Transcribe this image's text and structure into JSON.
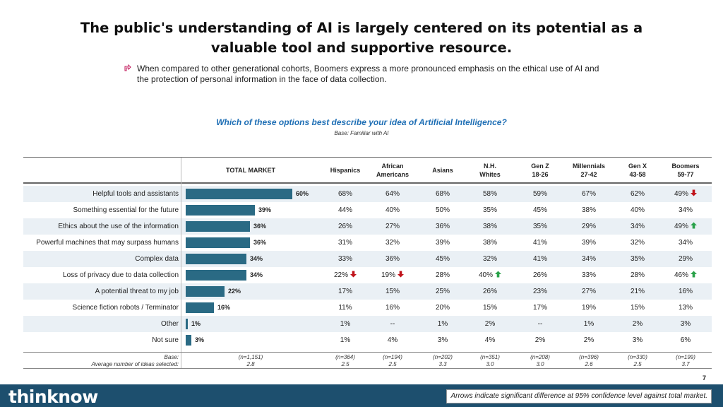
{
  "title_line1": "The public's understanding of AI is largely centered on its potential as a",
  "title_line2": "valuable tool and supportive resource.",
  "bullet_text": "When compared to other generational cohorts, Boomers express a more pronounced emphasis on the ethical use of AI and the protection of personal information in the face of data collection.",
  "question": "Which of these options best describe your idea of Artificial Intelligence?",
  "question_base": "Base: Familiar with AI",
  "colors": {
    "bar": "#2a6a84",
    "arrow_up": "#2aa24a",
    "arrow_down": "#c0141b",
    "footer": "#1d4f6e",
    "question": "#1f6fb5"
  },
  "columns": {
    "total": "TOTAL MARKET",
    "hispanics": "Hispanics",
    "african_l1": "African",
    "african_l2": "Americans",
    "asians": "Asians",
    "nh_l1": "N.H.",
    "nh_l2": "Whites",
    "genz_l1": "Gen Z",
    "genz_l2": "18-26",
    "mill_l1": "Millennials",
    "mill_l2": "27-42",
    "genx_l1": "Gen X",
    "genx_l2": "43-58",
    "boom_l1": "Boomers",
    "boom_l2": "59-77"
  },
  "chart_data": {
    "type": "bar",
    "orientation": "horizontal",
    "title": "Which of these options best describe your idea of Artificial Intelligence?",
    "categories": [
      "Helpful tools and assistants",
      "Something essential for the future",
      "Ethics about the use of the information",
      "Powerful machines that may surpass humans",
      "Complex data",
      "Loss of privacy due to data collection",
      "A potential threat to my job",
      "Science fiction robots / Terminator",
      "Other",
      "Not sure"
    ],
    "values": [
      60,
      39,
      36,
      36,
      34,
      34,
      22,
      16,
      1,
      3
    ],
    "value_labels": [
      "60%",
      "39%",
      "36%",
      "36%",
      "34%",
      "34%",
      "22%",
      "16%",
      "1%",
      "3%"
    ],
    "series_name": "TOTAL MARKET",
    "xlim": [
      0,
      100
    ]
  },
  "rows": [
    {
      "label": "Helpful tools and assistants",
      "bar_label": "60%",
      "cells": [
        "68%",
        "64%",
        "68%",
        "58%",
        "59%",
        "67%",
        "62%",
        "49%"
      ],
      "arrows": [
        "",
        "",
        "",
        "",
        "",
        "",
        "",
        "down"
      ]
    },
    {
      "label": "Something essential for the future",
      "bar_label": "39%",
      "cells": [
        "44%",
        "40%",
        "50%",
        "35%",
        "45%",
        "38%",
        "40%",
        "34%"
      ],
      "arrows": [
        "",
        "",
        "",
        "",
        "",
        "",
        "",
        ""
      ]
    },
    {
      "label": "Ethics about the use of the information",
      "bar_label": "36%",
      "cells": [
        "26%",
        "27%",
        "36%",
        "38%",
        "35%",
        "29%",
        "34%",
        "49%"
      ],
      "arrows": [
        "",
        "",
        "",
        "",
        "",
        "",
        "",
        "up"
      ]
    },
    {
      "label": "Powerful machines that may surpass humans",
      "bar_label": "36%",
      "cells": [
        "31%",
        "32%",
        "39%",
        "38%",
        "41%",
        "39%",
        "32%",
        "34%"
      ],
      "arrows": [
        "",
        "",
        "",
        "",
        "",
        "",
        "",
        ""
      ]
    },
    {
      "label": "Complex data",
      "bar_label": "34%",
      "cells": [
        "33%",
        "36%",
        "45%",
        "32%",
        "41%",
        "34%",
        "35%",
        "29%"
      ],
      "arrows": [
        "",
        "",
        "",
        "",
        "",
        "",
        "",
        ""
      ]
    },
    {
      "label": "Loss of privacy due to data collection",
      "bar_label": "34%",
      "cells": [
        "22%",
        "19%",
        "28%",
        "40%",
        "26%",
        "33%",
        "28%",
        "46%"
      ],
      "arrows": [
        "down",
        "down",
        "",
        "up",
        "",
        "",
        "",
        "up"
      ]
    },
    {
      "label": "A potential threat to my job",
      "bar_label": "22%",
      "cells": [
        "17%",
        "15%",
        "25%",
        "26%",
        "23%",
        "27%",
        "21%",
        "16%"
      ],
      "arrows": [
        "",
        "",
        "",
        "",
        "",
        "",
        "",
        ""
      ]
    },
    {
      "label": "Science fiction robots / Terminator",
      "bar_label": "16%",
      "cells": [
        "11%",
        "16%",
        "20%",
        "15%",
        "17%",
        "19%",
        "15%",
        "13%"
      ],
      "arrows": [
        "",
        "",
        "",
        "",
        "",
        "",
        "",
        ""
      ]
    },
    {
      "label": "Other",
      "bar_label": "1%",
      "cells": [
        "1%",
        "--",
        "1%",
        "2%",
        "--",
        "1%",
        "2%",
        "3%"
      ],
      "arrows": [
        "",
        "",
        "",
        "",
        "",
        "",
        "",
        ""
      ]
    },
    {
      "label": "Not sure",
      "bar_label": "3%",
      "cells": [
        "1%",
        "4%",
        "3%",
        "4%",
        "2%",
        "2%",
        "3%",
        "6%"
      ],
      "arrows": [
        "",
        "",
        "",
        "",
        "",
        "",
        "",
        ""
      ]
    }
  ],
  "footer_rows": [
    {
      "label": "Base:",
      "values": [
        "(n=1,151)",
        "(n=364)",
        "(n=194)",
        "(n=202)",
        "(n=351)",
        "(n=208)",
        "(n=396)",
        "(n=330)",
        "(n=199)"
      ]
    },
    {
      "label": "Average number of ideas selected:",
      "values": [
        "2.8",
        "2.5",
        "2.5",
        "3.3",
        "3.0",
        "3.0",
        "2.6",
        "2.5",
        "3.7"
      ]
    }
  ],
  "page_number": "7",
  "logo_text": "thinknow",
  "note": "Arrows indicate significant difference at 95% confidence level against total market."
}
